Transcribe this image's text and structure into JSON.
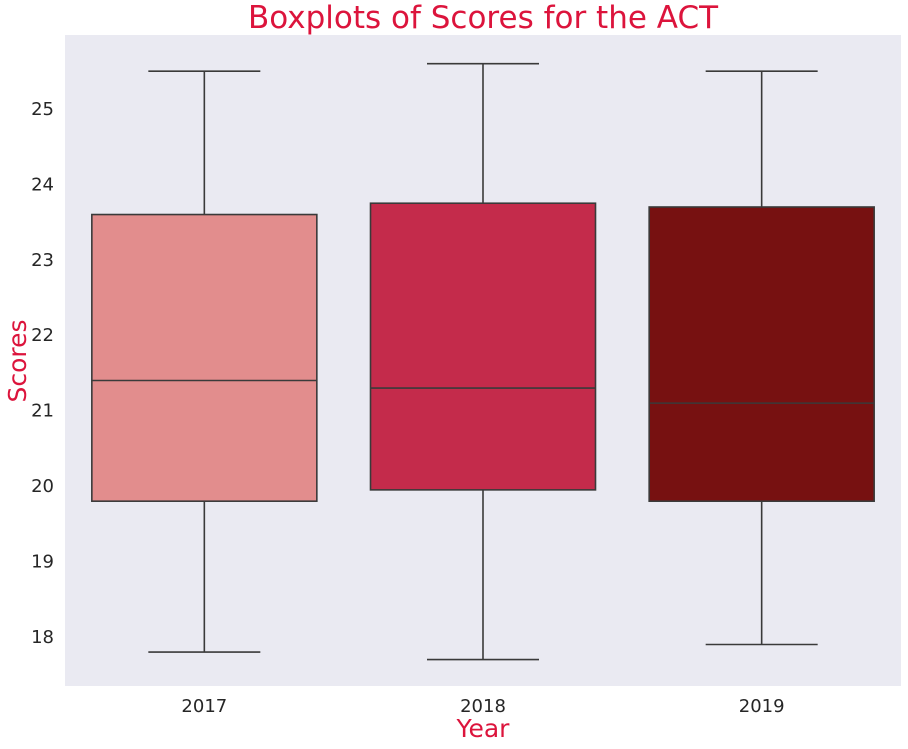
{
  "chart_data": {
    "type": "boxplot",
    "title": "Boxplots of Scores for the ACT",
    "xlabel": "Year",
    "ylabel": "Scores",
    "categories": [
      "2017",
      "2018",
      "2019"
    ],
    "boxes": [
      {
        "category": "2017",
        "whisker_low": 17.8,
        "q1": 19.8,
        "median": 21.4,
        "q3": 23.6,
        "whisker_high": 25.5,
        "color": "#e28d8d"
      },
      {
        "category": "2018",
        "whisker_low": 17.7,
        "q1": 19.95,
        "median": 21.3,
        "q3": 23.75,
        "whisker_high": 25.6,
        "color": "#c42b4b"
      },
      {
        "category": "2019",
        "whisker_low": 17.9,
        "q1": 19.8,
        "median": 21.1,
        "q3": 23.7,
        "whisker_high": 25.5,
        "color": "#771111"
      }
    ],
    "yticks": [
      "18",
      "19",
      "20",
      "21",
      "22",
      "23",
      "24",
      "25"
    ],
    "ylim": [
      17.35,
      25.98
    ],
    "grid": false,
    "background_color": "#eaeaf2",
    "title_color": "#dc143c",
    "line_color": "#3a3a3a"
  }
}
